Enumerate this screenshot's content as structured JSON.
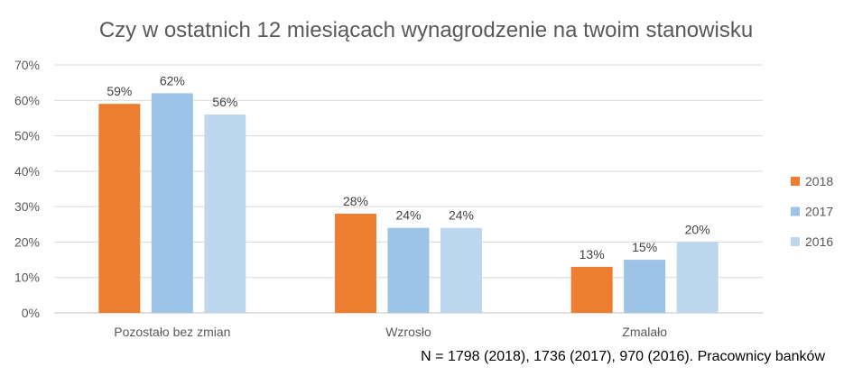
{
  "chart_data": {
    "type": "bar",
    "title": "Czy w ostatnich 12 miesiącach wynagrodzenie na twoim stanowisku",
    "footnote": "N = 1798 (2018), 1736 (2017), 970 (2016). Pracownicy banków",
    "categories": [
      "Pozostało bez zmian",
      "Wzrosło",
      "Zmalało"
    ],
    "series": [
      {
        "name": "2018",
        "values": [
          59,
          28,
          13
        ],
        "color": "#ED7D31"
      },
      {
        "name": "2017",
        "values": [
          62,
          24,
          15
        ],
        "color": "#9DC3E6"
      },
      {
        "name": "2016",
        "values": [
          56,
          24,
          20
        ],
        "color": "#BDD7EE"
      }
    ],
    "data_labels": [
      [
        "59%",
        "28%",
        "13%"
      ],
      [
        "62%",
        "24%",
        "15%"
      ],
      [
        "56%",
        "24%",
        "20%"
      ]
    ],
    "y_ticks": [
      0,
      10,
      20,
      30,
      40,
      50,
      60,
      70
    ],
    "y_tick_labels": [
      "0%",
      "10%",
      "20%",
      "30%",
      "40%",
      "50%",
      "60%",
      "70%"
    ],
    "ylim": [
      0,
      70
    ],
    "grid": true,
    "legend_position": "right"
  }
}
